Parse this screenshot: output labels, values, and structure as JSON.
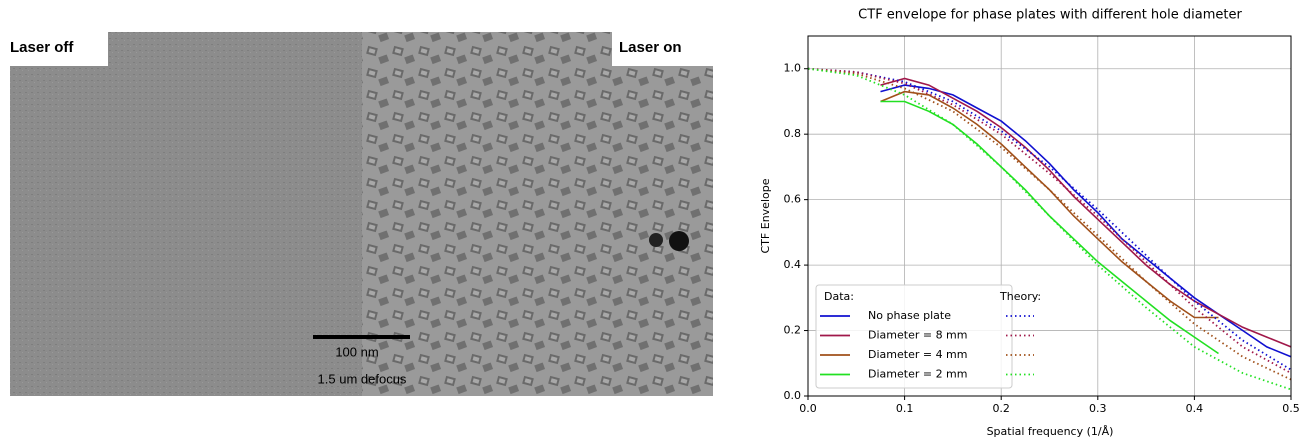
{
  "micrograph": {
    "left_label": "Laser off",
    "right_label": "Laser on",
    "scale_bar": "100 nm",
    "defocus": "1.5 um defocus"
  },
  "chart_data": {
    "type": "line",
    "title": "CTF envelope for phase plates with different hole diameter",
    "x_label": "Spatial frequency (1/Å)",
    "y_label": "CTF Envelope",
    "xlim": [
      0,
      0.5
    ],
    "ylim": [
      0,
      1.1
    ],
    "xticks": [
      {
        "value": 0,
        "label": "0.0"
      },
      0.1,
      0.2,
      0.3,
      0.4,
      0.5
    ],
    "yticks": [
      {
        "value": 0,
        "label": "0.0"
      },
      0.2,
      0.4,
      0.6,
      0.8,
      {
        "value": 1,
        "label": "1.0"
      }
    ],
    "grid": true,
    "legend": "lower left",
    "legend_titles": [
      "Data:",
      "Theory:"
    ],
    "series": [
      {
        "name": "No phase plate",
        "color": "#1010d0",
        "style": "solid",
        "x": [
          0.075,
          0.1,
          0.125,
          0.15,
          0.175,
          0.2,
          0.225,
          0.25,
          0.275,
          0.3,
          0.325,
          0.35,
          0.375,
          0.4,
          0.425,
          0.45,
          0.475,
          0.5
        ],
        "values": [
          0.93,
          0.95,
          0.94,
          0.92,
          0.88,
          0.84,
          0.78,
          0.71,
          0.63,
          0.56,
          0.48,
          0.42,
          0.36,
          0.3,
          0.25,
          0.2,
          0.15,
          0.12
        ]
      },
      {
        "name": "Diameter = 8 mm",
        "color": "#a0184a",
        "style": "solid",
        "x": [
          0.075,
          0.1,
          0.125,
          0.15,
          0.175,
          0.2,
          0.225,
          0.25,
          0.275,
          0.3,
          0.325,
          0.35,
          0.375,
          0.4,
          0.425,
          0.45,
          0.475,
          0.5
        ],
        "values": [
          0.95,
          0.97,
          0.95,
          0.91,
          0.87,
          0.82,
          0.76,
          0.69,
          0.61,
          0.54,
          0.47,
          0.4,
          0.34,
          0.29,
          0.25,
          0.21,
          0.18,
          0.15
        ]
      },
      {
        "name": "Diameter = 4 mm",
        "color": "#a0501a",
        "style": "solid",
        "x": [
          0.075,
          0.1,
          0.125,
          0.15,
          0.175,
          0.2,
          0.225,
          0.25,
          0.275,
          0.3,
          0.325,
          0.35,
          0.375,
          0.4,
          0.425,
          0.45,
          0.475,
          0.5
        ],
        "values": [
          0.9,
          0.93,
          0.92,
          0.88,
          0.83,
          0.77,
          0.7,
          0.63,
          0.55,
          0.48,
          0.41,
          0.35,
          0.29,
          0.24,
          0.24,
          null,
          null,
          null
        ]
      },
      {
        "name": "Diameter = 2 mm",
        "color": "#22e022",
        "style": "solid",
        "x": [
          0.075,
          0.1,
          0.125,
          0.15,
          0.175,
          0.2,
          0.225,
          0.25,
          0.275,
          0.3,
          0.325,
          0.35,
          0.375,
          0.4,
          0.425,
          0.45,
          0.475,
          0.5
        ],
        "values": [
          0.9,
          0.9,
          0.87,
          0.83,
          0.77,
          0.7,
          0.63,
          0.55,
          0.48,
          0.41,
          0.35,
          0.29,
          0.23,
          0.18,
          0.13,
          null,
          null,
          null
        ]
      },
      {
        "color": "#1010d0",
        "style": "dotted",
        "x": [
          0,
          0.05,
          0.1,
          0.15,
          0.2,
          0.25,
          0.3,
          0.35,
          0.4,
          0.45,
          0.5
        ],
        "values": [
          1,
          0.99,
          0.96,
          0.9,
          0.81,
          0.7,
          0.57,
          0.43,
          0.29,
          0.17,
          0.08
        ]
      },
      {
        "color": "#a0184a",
        "style": "dotted",
        "x": [
          0,
          0.05,
          0.1,
          0.15,
          0.2,
          0.25,
          0.3,
          0.35,
          0.4,
          0.45,
          0.5
        ],
        "values": [
          1,
          0.99,
          0.955,
          0.89,
          0.8,
          0.68,
          0.55,
          0.41,
          0.27,
          0.15,
          0.07
        ]
      },
      {
        "color": "#a0501a",
        "style": "dotted",
        "x": [
          0,
          0.05,
          0.1,
          0.15,
          0.2,
          0.25,
          0.3,
          0.35,
          0.4,
          0.45,
          0.5
        ],
        "values": [
          1,
          0.985,
          0.94,
          0.87,
          0.76,
          0.63,
          0.49,
          0.35,
          0.22,
          0.12,
          0.05
        ]
      },
      {
        "color": "#22e022",
        "style": "dotted",
        "x": [
          0,
          0.05,
          0.1,
          0.15,
          0.2,
          0.25,
          0.3,
          0.35,
          0.4,
          0.45,
          0.5
        ],
        "values": [
          1,
          0.98,
          0.92,
          0.83,
          0.7,
          0.55,
          0.4,
          0.27,
          0.15,
          0.07,
          0.02
        ]
      }
    ]
  }
}
